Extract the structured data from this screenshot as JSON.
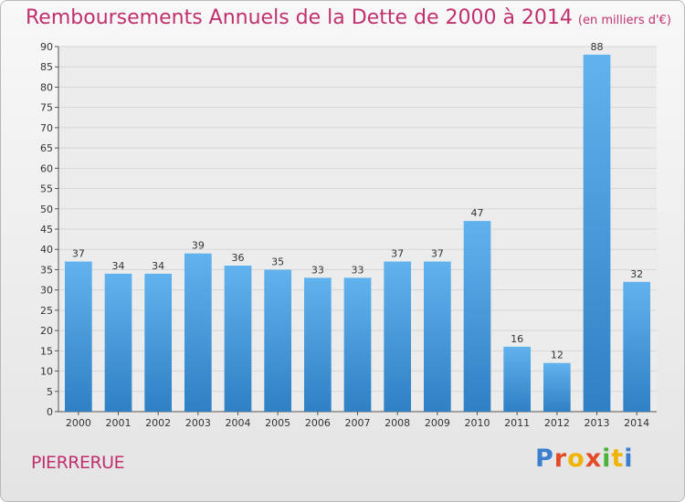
{
  "header": {
    "title": "Remboursements Annuels de la Dette de 2000 à 2014",
    "subtitle": "(en milliers d'€)"
  },
  "footer": {
    "commune": "PIERRERUE",
    "logo": "Proxiti"
  },
  "colors": {
    "title": "#c0306e",
    "bar_light": "#62b2ee",
    "bar_dark": "#2f80c4",
    "grid": "#d6d6d6"
  },
  "chart_data": {
    "type": "bar",
    "title": "Remboursements Annuels de la Dette de 2000 à 2014",
    "subtitle": "(en milliers d'€)",
    "xlabel": "",
    "ylabel": "",
    "categories": [
      "2000",
      "2001",
      "2002",
      "2003",
      "2004",
      "2005",
      "2006",
      "2007",
      "2008",
      "2009",
      "2010",
      "2011",
      "2012",
      "2013",
      "2014"
    ],
    "values": [
      37,
      34,
      34,
      39,
      36,
      35,
      33,
      33,
      37,
      37,
      47,
      16,
      12,
      88,
      32
    ],
    "ylim": [
      0,
      90
    ],
    "yticks": [
      0,
      5,
      10,
      15,
      20,
      25,
      30,
      35,
      40,
      45,
      50,
      55,
      60,
      65,
      70,
      75,
      80,
      85,
      90
    ],
    "grid": true,
    "data_labels": true
  }
}
